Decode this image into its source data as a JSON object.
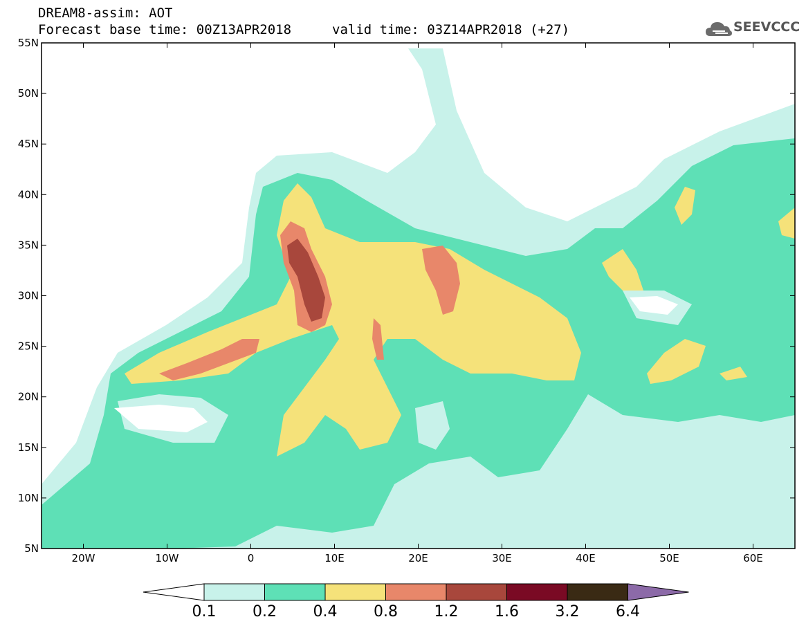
{
  "header": {
    "title_line1": "DREAM8-assim: AOT",
    "title_line2": "Forecast base time: 00Z13APR2018",
    "valid_time": "valid time: 03Z14APR2018 (+27)",
    "logo_text": "SEEVCCC"
  },
  "map": {
    "lon_range": [
      -25,
      65
    ],
    "lat_range": [
      5,
      55
    ],
    "lon_ticks": [
      "20W",
      "10W",
      "0",
      "10E",
      "20E",
      "30E",
      "40E",
      "50E",
      "60E"
    ],
    "lon_tick_values": [
      -20,
      -10,
      0,
      10,
      20,
      30,
      40,
      50,
      60
    ],
    "lat_ticks": [
      "55N",
      "50N",
      "45N",
      "40N",
      "35N",
      "30N",
      "25N",
      "20N",
      "15N",
      "10N",
      "5N"
    ],
    "lat_tick_values": [
      55,
      50,
      45,
      40,
      35,
      30,
      25,
      20,
      15,
      10,
      5
    ]
  },
  "colorbar": {
    "labels": [
      "0.1",
      "0.2",
      "0.4",
      "0.8",
      "1.2",
      "1.6",
      "3.2",
      "6.4"
    ],
    "colors": [
      "#c8f2ea",
      "#5ee0b6",
      "#f5e27a",
      "#e8876a",
      "#a8473c",
      "#7a0a24",
      "#3a2a14",
      "#8c6aa8"
    ]
  }
}
